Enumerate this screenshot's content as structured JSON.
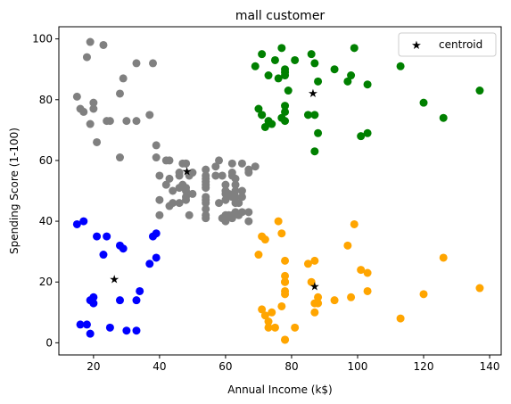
{
  "chart_data": {
    "type": "scatter",
    "title": "mall customer",
    "xlabel": "Annual Income (k$)",
    "ylabel": "Spending Score (1-100)",
    "xlim": [
      9.5,
      143.5
    ],
    "ylim": [
      -4,
      104
    ],
    "xticks": [
      20,
      40,
      60,
      80,
      100,
      120,
      140
    ],
    "yticks": [
      0,
      20,
      40,
      60,
      80,
      100
    ],
    "grid": false,
    "legend": {
      "placement": "top-right",
      "entries": [
        "centroid"
      ]
    },
    "colors": {
      "gray": "#808080",
      "green": "#008000",
      "blue": "#0000ff",
      "orange": "#ffa500",
      "centroid": "#ff0000"
    },
    "clusters": [
      {
        "color": "gray",
        "points": [
          [
            15,
            81
          ],
          [
            16,
            77
          ],
          [
            17,
            76
          ],
          [
            18,
            94
          ],
          [
            19,
            99
          ],
          [
            19,
            72
          ],
          [
            20,
            77
          ],
          [
            20,
            79
          ],
          [
            21,
            66
          ],
          [
            23,
            98
          ],
          [
            24,
            73
          ],
          [
            25,
            73
          ],
          [
            28,
            82
          ],
          [
            28,
            61
          ],
          [
            29,
            87
          ],
          [
            30,
            73
          ],
          [
            33,
            92
          ],
          [
            33,
            73
          ],
          [
            37,
            75
          ],
          [
            38,
            92
          ],
          [
            39,
            61
          ],
          [
            39,
            65
          ],
          [
            40,
            55
          ],
          [
            40,
            47
          ],
          [
            40,
            42
          ],
          [
            42,
            52
          ],
          [
            42,
            60
          ],
          [
            43,
            54
          ],
          [
            43,
            60
          ],
          [
            43,
            45
          ],
          [
            44,
            46
          ],
          [
            44,
            50
          ],
          [
            46,
            51
          ],
          [
            46,
            46
          ],
          [
            46,
            56
          ],
          [
            46,
            55
          ],
          [
            47,
            52
          ],
          [
            47,
            59
          ],
          [
            48,
            51
          ],
          [
            48,
            59
          ],
          [
            48,
            50
          ],
          [
            48,
            48
          ],
          [
            48,
            59
          ],
          [
            48,
            47
          ],
          [
            49,
            55
          ],
          [
            49,
            42
          ],
          [
            50,
            49
          ],
          [
            50,
            56
          ],
          [
            54,
            47
          ],
          [
            54,
            54
          ],
          [
            54,
            53
          ],
          [
            54,
            48
          ],
          [
            54,
            52
          ],
          [
            54,
            42
          ],
          [
            54,
            51
          ],
          [
            54,
            55
          ],
          [
            54,
            41
          ],
          [
            54,
            44
          ],
          [
            54,
            57
          ],
          [
            54,
            46
          ],
          [
            57,
            58
          ],
          [
            57,
            55
          ],
          [
            58,
            60
          ],
          [
            58,
            46
          ],
          [
            59,
            55
          ],
          [
            59,
            41
          ],
          [
            60,
            49
          ],
          [
            60,
            40
          ],
          [
            60,
            42
          ],
          [
            60,
            52
          ],
          [
            60,
            47
          ],
          [
            60,
            50
          ],
          [
            61,
            42
          ],
          [
            61,
            49
          ],
          [
            62,
            41
          ],
          [
            62,
            48
          ],
          [
            62,
            59
          ],
          [
            62,
            55
          ],
          [
            62,
            56
          ],
          [
            62,
            42
          ],
          [
            63,
            50
          ],
          [
            63,
            46
          ],
          [
            63,
            43
          ],
          [
            63,
            48
          ],
          [
            63,
            52
          ],
          [
            63,
            54
          ],
          [
            64,
            42
          ],
          [
            64,
            46
          ],
          [
            65,
            48
          ],
          [
            65,
            50
          ],
          [
            65,
            43
          ],
          [
            65,
            59
          ],
          [
            67,
            43
          ],
          [
            67,
            57
          ],
          [
            67,
            56
          ],
          [
            67,
            40
          ],
          [
            69,
            58
          ]
        ]
      },
      {
        "color": "green",
        "points": [
          [
            69,
            91
          ],
          [
            70,
            77
          ],
          [
            71,
            95
          ],
          [
            71,
            75
          ],
          [
            71,
            75
          ],
          [
            72,
            71
          ],
          [
            73,
            88
          ],
          [
            73,
            73
          ],
          [
            74,
            72
          ],
          [
            75,
            93
          ],
          [
            76,
            87
          ],
          [
            77,
            97
          ],
          [
            77,
            74
          ],
          [
            78,
            90
          ],
          [
            78,
            88
          ],
          [
            78,
            73
          ],
          [
            78,
            76
          ],
          [
            78,
            89
          ],
          [
            78,
            78
          ],
          [
            79,
            83
          ],
          [
            81,
            93
          ],
          [
            85,
            75
          ],
          [
            86,
            95
          ],
          [
            87,
            63
          ],
          [
            87,
            75
          ],
          [
            87,
            92
          ],
          [
            88,
            86
          ],
          [
            88,
            69
          ],
          [
            93,
            90
          ],
          [
            97,
            86
          ],
          [
            98,
            88
          ],
          [
            99,
            97
          ],
          [
            101,
            68
          ],
          [
            103,
            85
          ],
          [
            103,
            69
          ],
          [
            113,
            91
          ],
          [
            120,
            79
          ],
          [
            126,
            74
          ],
          [
            137,
            83
          ]
        ]
      },
      {
        "color": "blue",
        "points": [
          [
            15,
            39
          ],
          [
            16,
            6
          ],
          [
            17,
            40
          ],
          [
            18,
            6
          ],
          [
            19,
            3
          ],
          [
            19,
            14
          ],
          [
            20,
            15
          ],
          [
            20,
            13
          ],
          [
            21,
            35
          ],
          [
            23,
            29
          ],
          [
            24,
            35
          ],
          [
            25,
            5
          ],
          [
            28,
            14
          ],
          [
            28,
            32
          ],
          [
            29,
            31
          ],
          [
            30,
            4
          ],
          [
            33,
            4
          ],
          [
            33,
            14
          ],
          [
            34,
            17
          ],
          [
            37,
            26
          ],
          [
            38,
            35
          ],
          [
            39,
            36
          ],
          [
            39,
            28
          ]
        ]
      },
      {
        "color": "orange",
        "points": [
          [
            70,
            29
          ],
          [
            71,
            35
          ],
          [
            71,
            11
          ],
          [
            72,
            9
          ],
          [
            72,
            34
          ],
          [
            73,
            5
          ],
          [
            73,
            7
          ],
          [
            74,
            10
          ],
          [
            75,
            5
          ],
          [
            76,
            40
          ],
          [
            77,
            12
          ],
          [
            77,
            36
          ],
          [
            78,
            22
          ],
          [
            78,
            17
          ],
          [
            78,
            20
          ],
          [
            78,
            16
          ],
          [
            78,
            1
          ],
          [
            78,
            20
          ],
          [
            78,
            27
          ],
          [
            78,
            1
          ],
          [
            81,
            5
          ],
          [
            85,
            26
          ],
          [
            86,
            20
          ],
          [
            87,
            27
          ],
          [
            87,
            13
          ],
          [
            87,
            10
          ],
          [
            88,
            13
          ],
          [
            88,
            15
          ],
          [
            93,
            14
          ],
          [
            97,
            32
          ],
          [
            98,
            15
          ],
          [
            99,
            39
          ],
          [
            101,
            24
          ],
          [
            103,
            17
          ],
          [
            103,
            23
          ],
          [
            113,
            8
          ],
          [
            120,
            16
          ],
          [
            126,
            28
          ],
          [
            137,
            18
          ]
        ]
      }
    ],
    "centroids": [
      [
        48.3,
        56.4
      ],
      [
        86.5,
        82.1
      ],
      [
        26.3,
        20.9
      ],
      [
        87.0,
        18.6
      ]
    ]
  }
}
